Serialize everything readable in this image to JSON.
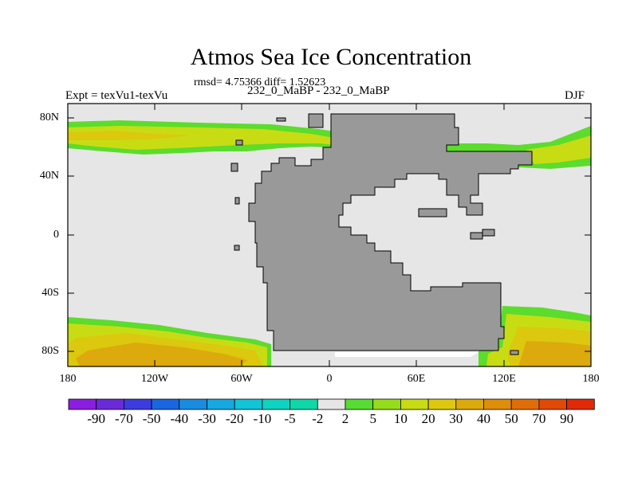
{
  "title": "Atmos Sea Ice Concentration",
  "subtitle": "rmsd= 4.75366 diff= 1.52623",
  "left_label": "Expt = texVu1-texVu",
  "center_label": "232_0_MaBP - 232_0_MaBP",
  "right_label": "DJF",
  "lat_labels": [
    "80N",
    "40N",
    "0",
    "40S",
    "80S"
  ],
  "lon_labels": [
    "180",
    "120W",
    "60W",
    "0",
    "60E",
    "120E",
    "180"
  ],
  "colorbar": {
    "labels": [
      "-90",
      "-70",
      "-50",
      "-40",
      "-30",
      "-20",
      "-10",
      "-5",
      "-2",
      "2",
      "5",
      "10",
      "20",
      "30",
      "40",
      "50",
      "70",
      "90"
    ],
    "colors": [
      "#8a1ee0",
      "#6a2ad8",
      "#3c3ce0",
      "#1a66e0",
      "#1a8ce0",
      "#16a8e0",
      "#12c4d8",
      "#10d2c0",
      "#0ed8a8",
      "#e6e6e6",
      "#56dc34",
      "#96dc1c",
      "#c6dc14",
      "#dcc80e",
      "#dcaa0c",
      "#de8e08",
      "#e06e08",
      "#e04a06",
      "#e02a06"
    ]
  },
  "colors": {
    "no_change": "#e6e6e6",
    "land": "#999999"
  }
}
